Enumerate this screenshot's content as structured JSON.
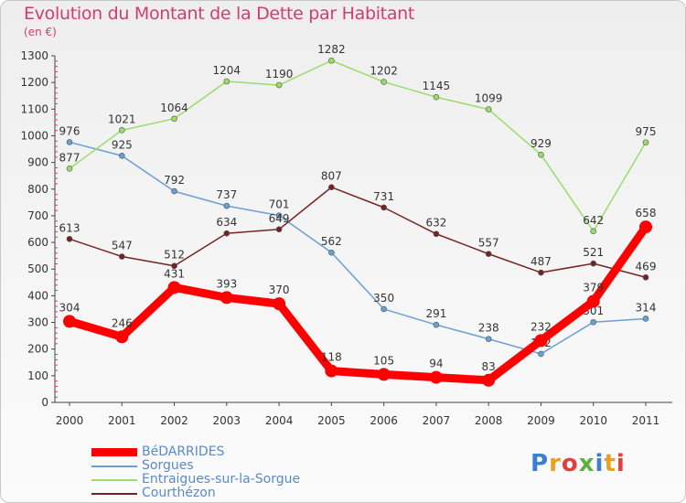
{
  "title": "Evolution du Montant de la Dette par Habitant",
  "subtitle": "(en €)",
  "brand": "Proxiti",
  "chart_data": {
    "type": "line",
    "x": [
      "2000",
      "2001",
      "2002",
      "2003",
      "2004",
      "2005",
      "2006",
      "2007",
      "2008",
      "2009",
      "2010",
      "2011"
    ],
    "ylim": [
      0,
      1300
    ],
    "yticks": [
      0,
      100,
      200,
      300,
      400,
      500,
      600,
      700,
      800,
      900,
      1000,
      1100,
      1200,
      1300
    ],
    "grid": false,
    "legend": "bottom-left",
    "series": [
      {
        "name": "BéDARRIDES",
        "color": "#ff0000",
        "values": [
          304,
          246,
          431,
          393,
          370,
          118,
          105,
          94,
          83,
          232,
          379,
          658
        ]
      },
      {
        "name": "Sorgues",
        "color": "#6a9fd4",
        "values": [
          976,
          925,
          792,
          737,
          701,
          562,
          350,
          291,
          238,
          182,
          301,
          314
        ]
      },
      {
        "name": "Entraigues-sur-la-Sorgue",
        "color": "#99dd66",
        "values": [
          877,
          1021,
          1064,
          1204,
          1190,
          1282,
          1202,
          1145,
          1099,
          929,
          642,
          975
        ]
      },
      {
        "name": "Courthézon",
        "color": "#772222",
        "values": [
          613,
          547,
          512,
          634,
          649,
          807,
          731,
          632,
          557,
          487,
          521,
          469
        ]
      }
    ]
  }
}
